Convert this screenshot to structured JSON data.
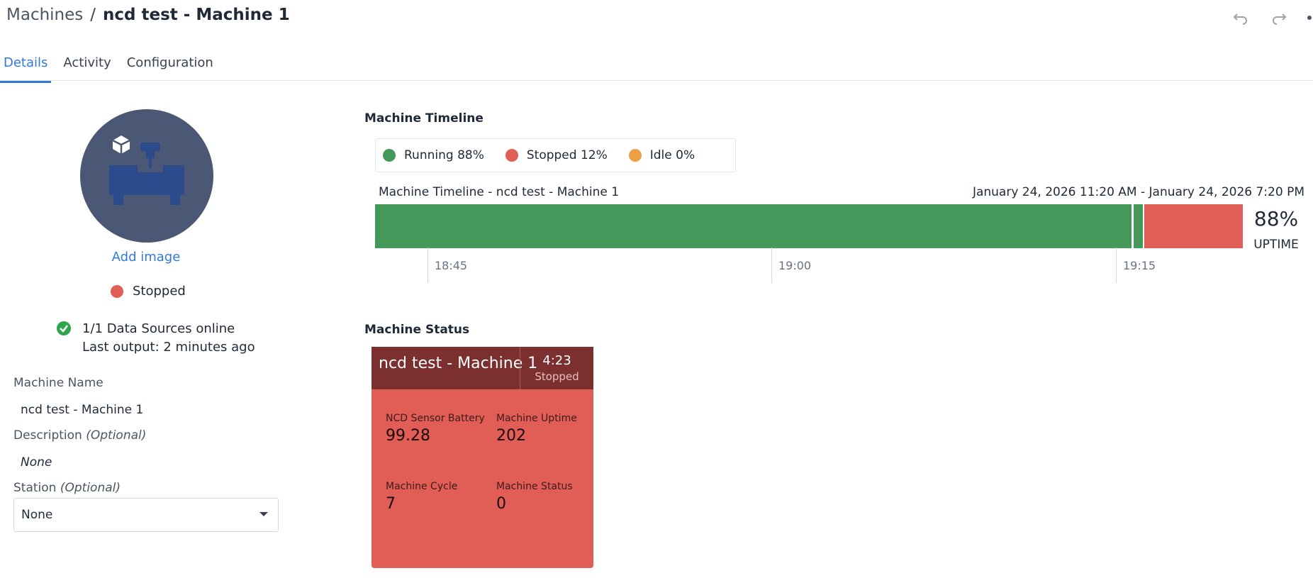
{
  "header": {
    "breadcrumb_parent": "Machines",
    "breadcrumb_sep": "/",
    "breadcrumb_current": "ncd test - Machine 1"
  },
  "tabs": [
    {
      "label": "Details",
      "active": true
    },
    {
      "label": "Activity",
      "active": false
    },
    {
      "label": "Configuration",
      "active": false
    }
  ],
  "left": {
    "add_image": "Add image",
    "state": "Stopped",
    "data_sources": "1/1 Data Sources online",
    "last_output": "Last output: 2 minutes ago",
    "machine_name_label": "Machine Name",
    "machine_name_value": "ncd test - Machine 1",
    "description_label": "Description",
    "description_optional": "(Optional)",
    "description_value": "None",
    "station_label": "Station",
    "station_optional": "(Optional)",
    "station_value": "None"
  },
  "timeline": {
    "title": "Machine Timeline",
    "legend": [
      {
        "label": "Running 88%",
        "color": "#43985a"
      },
      {
        "label": "Stopped 12%",
        "color": "#e05e56"
      },
      {
        "label": "Idle 0%",
        "color": "#eda046"
      }
    ],
    "label": "Machine Timeline - ncd test - Machine 1",
    "range": "January 24, 2026 11:20 AM - January 24, 2026 7:20 PM",
    "uptime_value": "88%",
    "uptime_label": "UPTIME",
    "ticks": [
      "18:45",
      "19:00",
      "19:15"
    ]
  },
  "status": {
    "title": "Machine Status",
    "card": {
      "name": "ncd test - Machine 1",
      "time": "4:23",
      "state": "Stopped",
      "metrics": [
        {
          "label": "NCD Sensor Battery",
          "value": "99.28"
        },
        {
          "label": "Machine Uptime",
          "value": "202"
        },
        {
          "label": "Machine Cycle",
          "value": "7"
        },
        {
          "label": "Machine Status",
          "value": "0"
        }
      ]
    }
  },
  "colors": {
    "accent": "#2f7ad8",
    "running": "#43985a",
    "stopped": "#e05e56",
    "idle": "#eda046",
    "card_header": "#7b2f2e"
  }
}
